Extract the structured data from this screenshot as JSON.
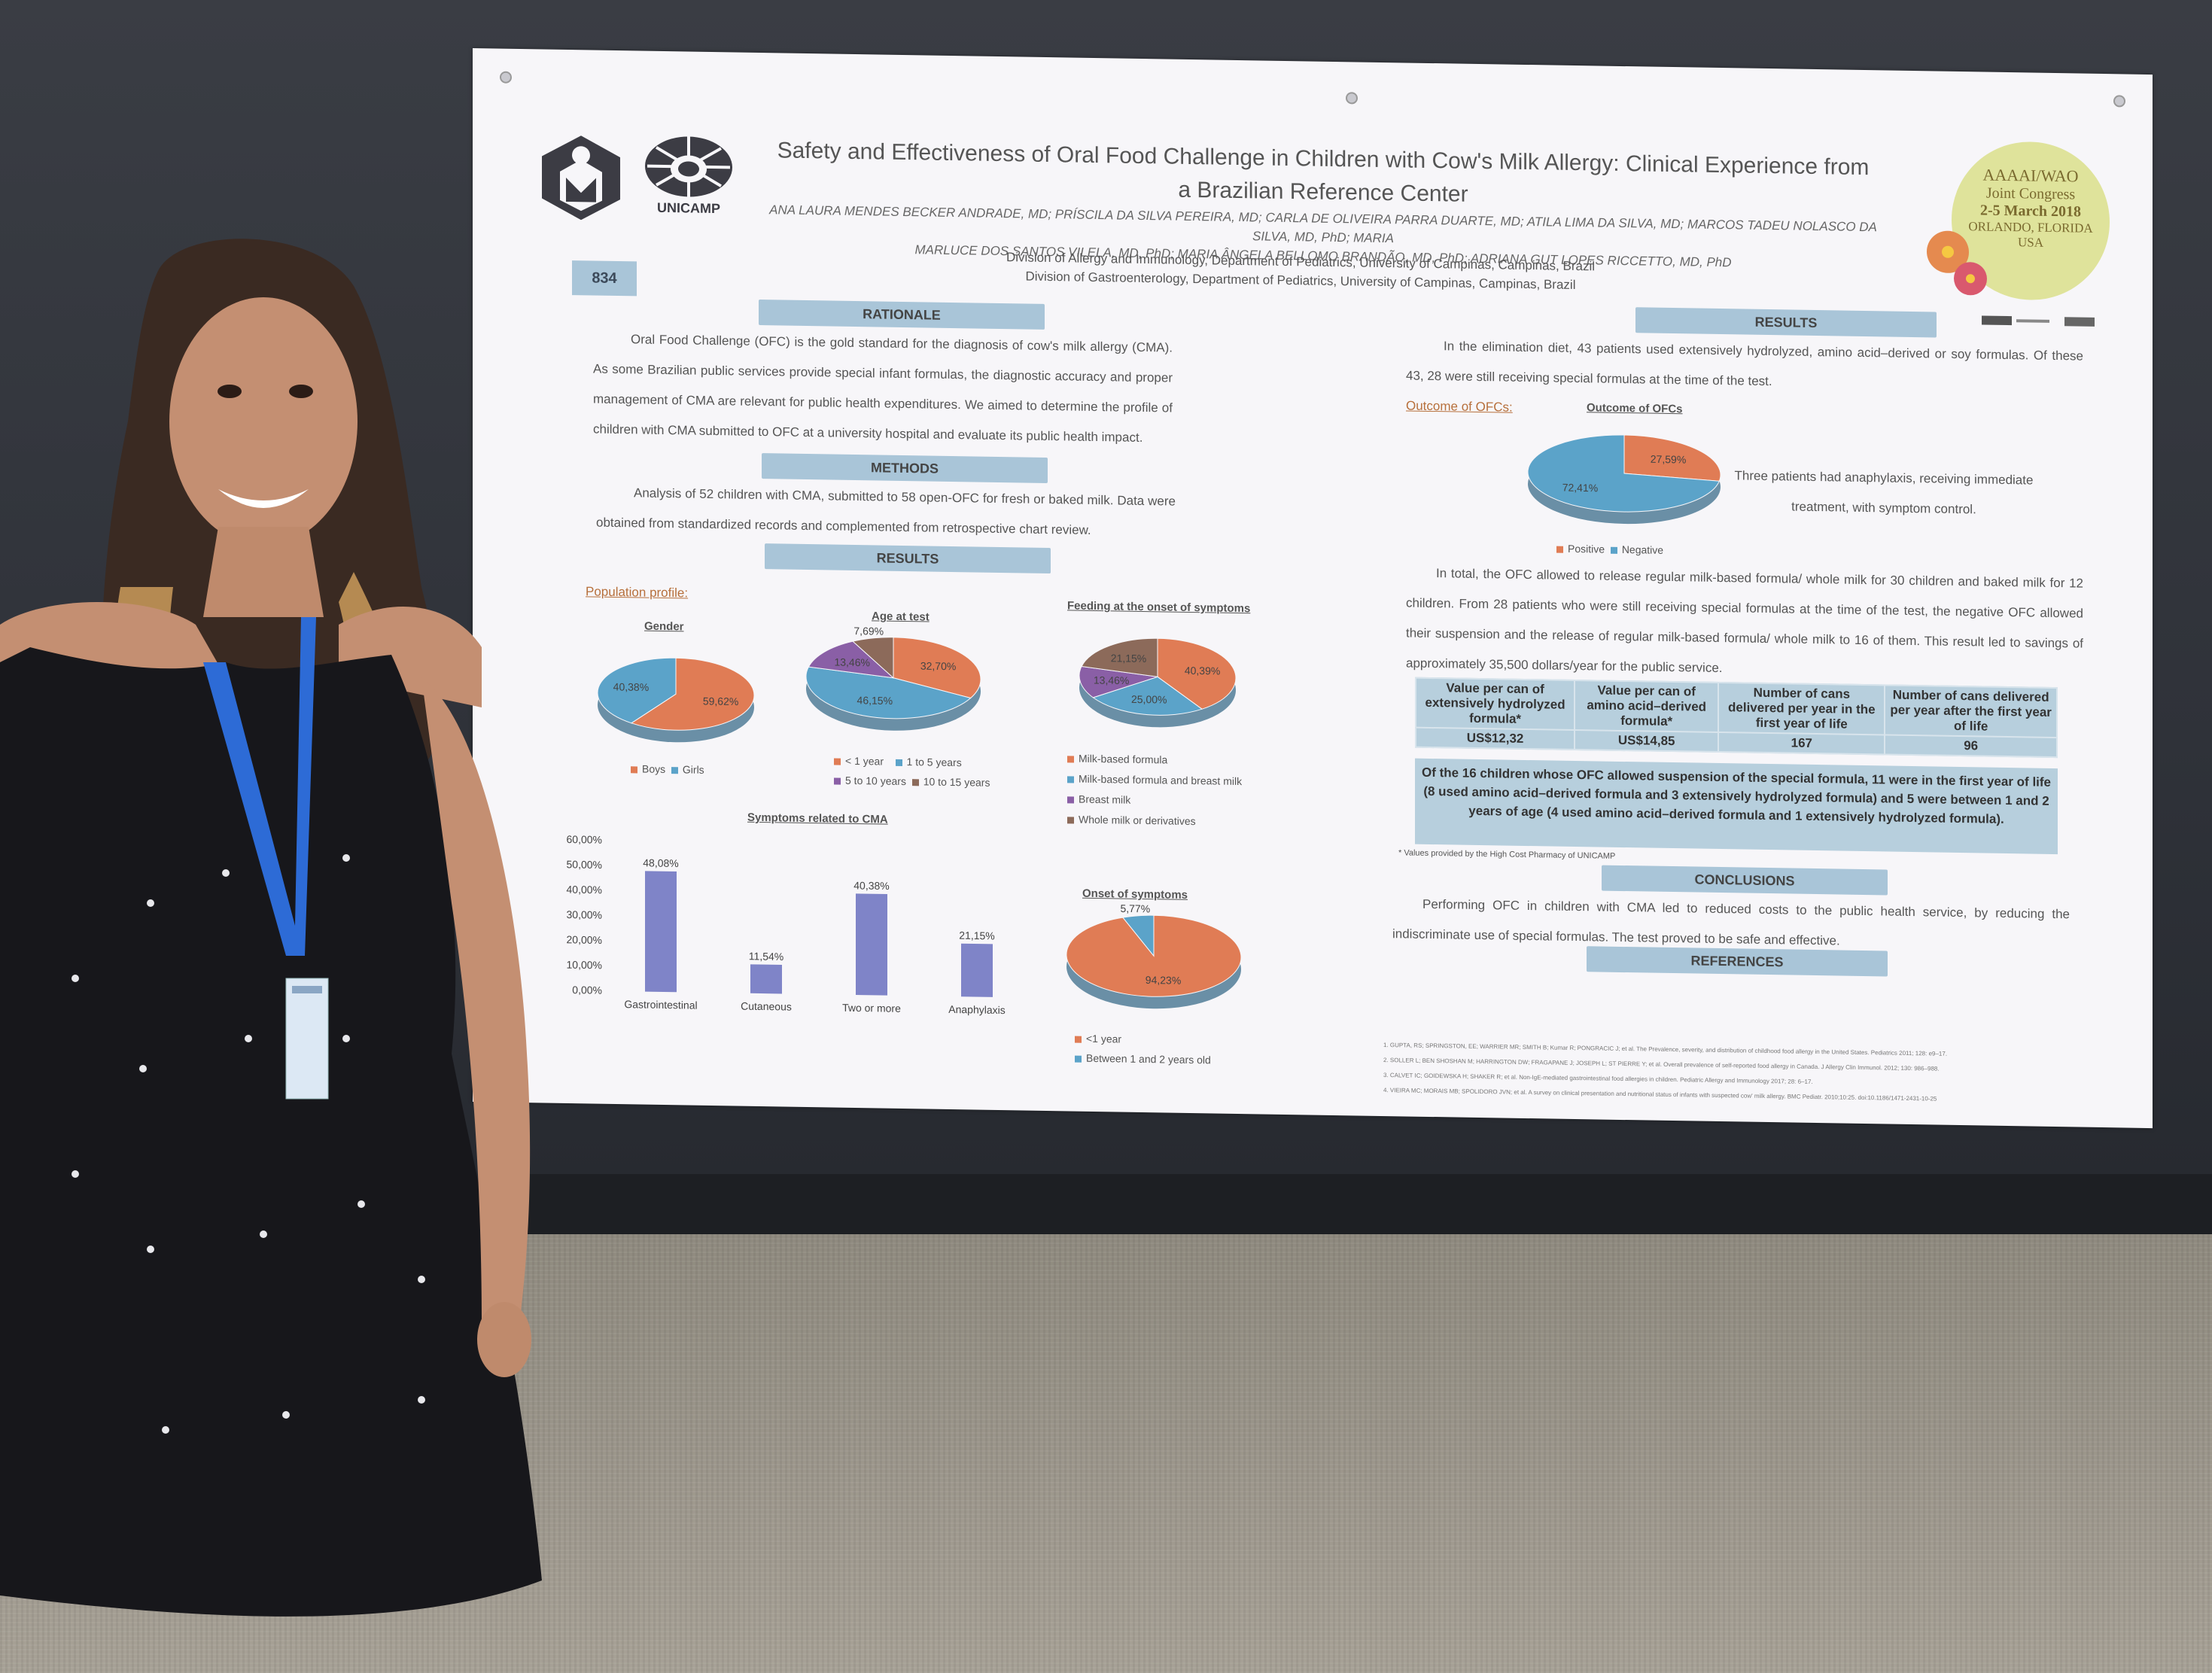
{
  "poster": {
    "title_line1": "Safety and Effectiveness of Oral Food Challenge in Children with Cow's Milk Allergy: Clinical Experience from",
    "title_line2": "a Brazilian Reference Center",
    "authors_line1": "ANA LAURA MENDES BECKER ANDRADE, MD; PRÍSCILA DA SILVA PEREIRA, MD; CARLA DE OLIVEIRA PARRA DUARTE, MD; ATILA LIMA DA SILVA, MD; MARCOS TADEU NOLASCO DA SILVA, MD, PhD; MARIA",
    "authors_line2": "MARLUCE DOS SANTOS VILELA, MD, PhD; MARIA ÂNGELA BELLOMO BRANDÃO, MD, PhD; ADRIANA GUT LOPES RICCETTO, MD, PhD",
    "affiliation1": "Division of Allergy and Immunology, Department of Pediatrics, University of Campinas, Campinas, Brazil",
    "affiliation2": "Division of Gastroenterology, Department of Pediatrics, University of Campinas, Campinas, Brazil",
    "logo_text": "UNICAMP",
    "poster_number": "834",
    "badge": {
      "line1": "AAAAI/WAO",
      "line2": "Joint Congress",
      "line3": "2-5 March 2018",
      "line4": "ORLANDO, FLORIDA",
      "line5": "USA"
    },
    "sections": {
      "rationale": "RATIONALE",
      "methods": "METHODS",
      "results_left": "RESULTS",
      "results_right": "RESULTS",
      "conclusions": "CONCLUSIONS",
      "references": "REFERENCES"
    },
    "rationale_text": "Oral Food Challenge (OFC) is the gold standard for the diagnosis of cow's milk allergy (CMA). As some Brazilian public services provide special infant formulas, the diagnostic accuracy and proper management of CMA are relevant for public health expenditures. We aimed to determine the profile of children with CMA submitted to OFC at a university hospital and evaluate its public health impact.",
    "methods_text": "Analysis of 52 children with CMA, submitted to 58 open-OFC for fresh or baked milk. Data were obtained from standardized records and complemented from retrospective chart review.",
    "population_profile": "Population profile:",
    "results_text1": "In the elimination diet, 43 patients used extensively hydrolyzed, amino acid–derived or soy formulas. Of these 43, 28 were still receiving special formulas at the time of the test.",
    "outcome_label": "Outcome of OFCs:",
    "anaphylaxis_text": "Three patients had anaphylaxis, receiving immediate treatment, with symptom control.",
    "results_text2": "In total, the OFC allowed to release regular milk-based formula/ whole milk for 30 children and baked milk for 12 children. From 28 patients who were still receiving special formulas at the time of the test, the negative OFC allowed their suspension and the release of regular milk-based formula/ whole milk to 16 of them. This result led to savings of approximately 35,500 dollars/year for the public service.",
    "table": {
      "headers": [
        "Value per can of extensively hydrolyzed formula*",
        "Value per can of amino acid–derived formula*",
        "Number of cans delivered per year in the first year of life",
        "Number of cans delivered per year after the first year of life"
      ],
      "values": [
        "US$12,32",
        "US$14,85",
        "167",
        "96"
      ]
    },
    "highlight_text": "Of the 16 children whose OFC allowed suspension of the special formula, 11 were in the first year of life (8 used amino acid–derived formula and 3 extensively hydrolyzed formula) and 5 were between 1 and 2 years of age (4 used amino acid–derived formula and 1 extensively hydrolyzed formula).",
    "footnote": "* Values provided by the High Cost Pharmacy of UNICAMP",
    "conclusions_text": "Performing OFC in children with CMA led to reduced costs to the public health service, by reducing the indiscriminate use of special formulas. The test proved to be safe and effective.",
    "references": [
      "1. GUPTA, RS; SPRINGSTON, EE; WARRIER MR; SMITH B; Kumar R; PONGRACIC J; et al. The Prevalence, severity, and distribution of childhood food allergy in the United States. Pediatrics 2011; 128: e9–17.",
      "2. SOLLER L; BEN SHOSHAN M; HARRINGTON DW; FRAGAPANE J; JOSEPH L; ST PIERRE Y; et al. Overall prevalence of self-reported food allergy in Canada. J Allergy Clin Immunol. 2012; 130: 986–988.",
      "3. CALVET IC; GOIDEWSKA H; SHAKER R; et al. Non-IgE-mediated gastrointestinal food allergies in children. Pediatric Allergy and Immunology 2017; 28: 6–17.",
      "4. VIEIRA MC; MORAIS MB; SPOLIDORO JVN; et al. A survey on clinical presentation and nutritional status of infants with suspected cow' milk allergy. BMC Pediatr. 2010;10:25. doi:10.1186/1471-2431-10-25"
    ]
  },
  "chart_data": [
    {
      "type": "pie",
      "title": "Gender",
      "categories": [
        "Boys",
        "Girls"
      ],
      "values": [
        59.62,
        40.38
      ],
      "labels": [
        "59,62%",
        "40,38%"
      ],
      "colors": [
        "#e07c55",
        "#5ba3c9"
      ]
    },
    {
      "type": "pie",
      "title": "Age at test",
      "categories": [
        "< 1 year",
        "1 to 5 years",
        "5 to 10 years",
        "10 to 15 years"
      ],
      "values": [
        32.7,
        46.15,
        13.46,
        7.69
      ],
      "labels": [
        "32,70%",
        "46,15%",
        "13,46%",
        "7,69%"
      ],
      "colors": [
        "#e07c55",
        "#5ba3c9",
        "#8a5fa6",
        "#8c6a5a"
      ]
    },
    {
      "type": "pie",
      "title": "Feeding at the onset of symptoms",
      "categories": [
        "Milk-based formula",
        "Milk-based formula and breast milk",
        "Breast milk",
        "Whole milk or derivatives"
      ],
      "values": [
        40.39,
        25.0,
        13.46,
        21.15
      ],
      "labels": [
        "40,39%",
        "25,00%",
        "13,46%",
        "21,15%"
      ],
      "colors": [
        "#e07c55",
        "#5ba3c9",
        "#8a5fa6",
        "#8c6a5a"
      ]
    },
    {
      "type": "bar",
      "title": "Symptoms related to CMA",
      "categories": [
        "Gastrointestinal",
        "Cutaneous",
        "Two or more",
        "Anaphylaxis"
      ],
      "values": [
        48.08,
        11.54,
        40.38,
        21.15
      ],
      "labels": [
        "48,08%",
        "11,54%",
        "40,38%",
        "21,15%"
      ],
      "yticks": [
        "60,00%",
        "50,00%",
        "40,00%",
        "30,00%",
        "20,00%",
        "10,00%",
        "0,00%"
      ],
      "ylim": [
        0,
        60
      ],
      "color": "#7f84c8"
    },
    {
      "type": "pie",
      "title": "Onset of symptoms",
      "categories": [
        "<1 year",
        "Between 1 and 2 years old"
      ],
      "values": [
        94.23,
        5.77
      ],
      "labels": [
        "94,23%",
        "5,77%"
      ],
      "colors": [
        "#e07c55",
        "#5ba3c9"
      ]
    },
    {
      "type": "pie",
      "title": "Outcome of OFCs",
      "categories": [
        "Positive",
        "Negative"
      ],
      "values": [
        27.59,
        72.41
      ],
      "labels": [
        "27,59%",
        "72,41%"
      ],
      "colors": [
        "#e07c55",
        "#5ba3c9"
      ]
    }
  ]
}
